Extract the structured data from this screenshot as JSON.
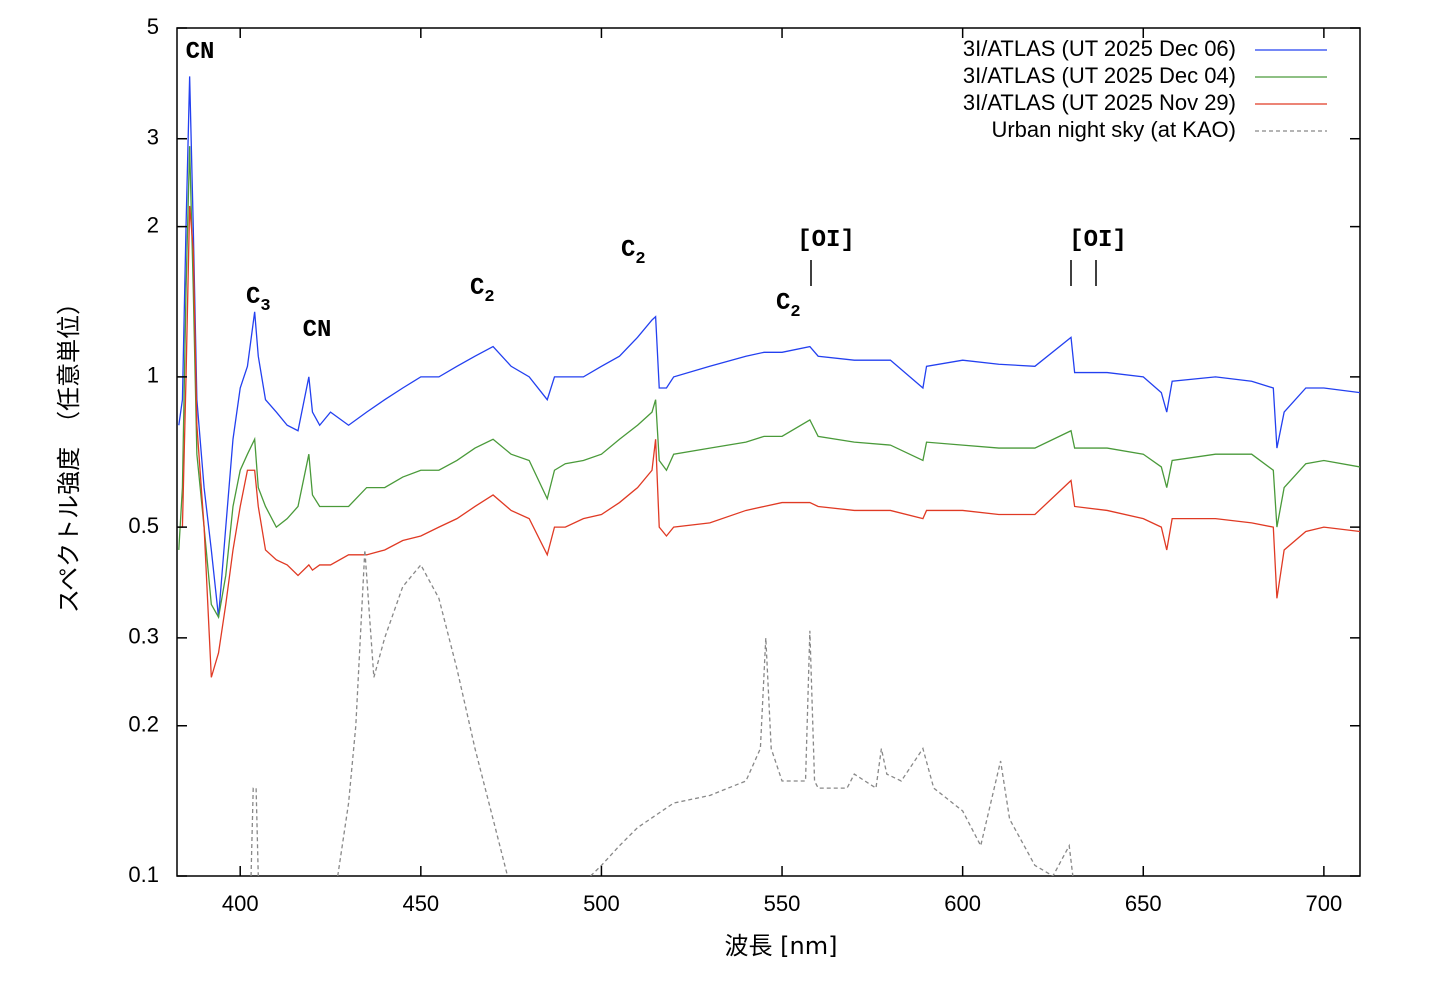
{
  "chart_data": {
    "type": "line",
    "xlabel": "波長 [nm]",
    "ylabel": "スペクトル強度　（任意単位）",
    "log_y": true,
    "legend": "upper right",
    "xlim": [
      382.5,
      710
    ],
    "ylim": [
      0.1,
      5
    ],
    "xticks": [
      400,
      450,
      500,
      550,
      600,
      650,
      700
    ],
    "yticks": [
      0.1,
      0.2,
      0.3,
      0.5,
      1,
      2,
      3,
      5
    ],
    "annotations": [
      {
        "text": "CN"
      },
      {
        "text": "C",
        "sub": "3"
      },
      {
        "text": "CN"
      },
      {
        "text": "C",
        "sub": "2"
      },
      {
        "text": "C",
        "sub": "2"
      },
      {
        "text": "[OI]"
      },
      {
        "text": "C",
        "sub": "2"
      },
      {
        "text": "[OI]"
      }
    ],
    "x": [
      383,
      384,
      385,
      386,
      387,
      388,
      390,
      392,
      394,
      396,
      398,
      400,
      402,
      404,
      405,
      407,
      410,
      413,
      416,
      419,
      420,
      422,
      425,
      430,
      435,
      440,
      445,
      450,
      455,
      460,
      465,
      470,
      475,
      480,
      485,
      487,
      490,
      495,
      500,
      505,
      510,
      514,
      515,
      516,
      518,
      520,
      530,
      540,
      545,
      550,
      557.7,
      560,
      570,
      580,
      589,
      590,
      600,
      610,
      620,
      630,
      631,
      640,
      650,
      655,
      656.5,
      658,
      670,
      680,
      686,
      687,
      689,
      695,
      700,
      710
    ],
    "series": [
      {
        "name": "3I/ATLAS (UT 2025 Dec 06)",
        "color": "#2340f0",
        "style": "solid",
        "values": [
          0.8,
          0.9,
          2.0,
          4.0,
          2.0,
          0.9,
          0.6,
          0.45,
          0.33,
          0.5,
          0.75,
          0.95,
          1.05,
          1.35,
          1.1,
          0.9,
          0.85,
          0.8,
          0.78,
          1.0,
          0.85,
          0.8,
          0.85,
          0.8,
          0.85,
          0.9,
          0.95,
          1.0,
          1.0,
          1.05,
          1.1,
          1.15,
          1.05,
          1.0,
          0.9,
          1.0,
          1.0,
          1.0,
          1.05,
          1.1,
          1.2,
          1.3,
          1.32,
          0.95,
          0.95,
          1.0,
          1.05,
          1.1,
          1.12,
          1.12,
          1.15,
          1.1,
          1.08,
          1.08,
          0.95,
          1.05,
          1.08,
          1.06,
          1.05,
          1.2,
          1.02,
          1.02,
          1.0,
          0.93,
          0.85,
          0.98,
          1.0,
          0.98,
          0.95,
          0.72,
          0.85,
          0.95,
          0.95,
          0.93
        ]
      },
      {
        "name": "3I/ATLAS (UT 2025 Dec 04)",
        "color": "#4a9a3a",
        "style": "solid",
        "values": [
          0.45,
          0.6,
          1.5,
          2.9,
          1.5,
          0.7,
          0.5,
          0.35,
          0.33,
          0.4,
          0.55,
          0.65,
          0.7,
          0.75,
          0.6,
          0.55,
          0.5,
          0.52,
          0.55,
          0.7,
          0.58,
          0.55,
          0.55,
          0.55,
          0.6,
          0.6,
          0.63,
          0.65,
          0.65,
          0.68,
          0.72,
          0.75,
          0.7,
          0.68,
          0.57,
          0.65,
          0.67,
          0.68,
          0.7,
          0.75,
          0.8,
          0.85,
          0.9,
          0.68,
          0.65,
          0.7,
          0.72,
          0.74,
          0.76,
          0.76,
          0.82,
          0.76,
          0.74,
          0.73,
          0.68,
          0.74,
          0.73,
          0.72,
          0.72,
          0.78,
          0.72,
          0.72,
          0.7,
          0.66,
          0.6,
          0.68,
          0.7,
          0.7,
          0.65,
          0.5,
          0.6,
          0.67,
          0.68,
          0.66
        ]
      },
      {
        "name": "3I/ATLAS (UT 2025 Nov 29)",
        "color": "#e03a24",
        "style": "solid",
        "values": [
          0.5,
          0.5,
          1.0,
          2.2,
          1.8,
          0.8,
          0.5,
          0.25,
          0.28,
          0.35,
          0.45,
          0.55,
          0.65,
          0.65,
          0.55,
          0.45,
          0.43,
          0.42,
          0.4,
          0.42,
          0.41,
          0.42,
          0.42,
          0.44,
          0.44,
          0.45,
          0.47,
          0.48,
          0.5,
          0.52,
          0.55,
          0.58,
          0.54,
          0.52,
          0.44,
          0.5,
          0.5,
          0.52,
          0.53,
          0.56,
          0.6,
          0.65,
          0.75,
          0.5,
          0.48,
          0.5,
          0.51,
          0.54,
          0.55,
          0.56,
          0.56,
          0.55,
          0.54,
          0.54,
          0.52,
          0.54,
          0.54,
          0.53,
          0.53,
          0.62,
          0.55,
          0.54,
          0.52,
          0.5,
          0.45,
          0.52,
          0.52,
          0.51,
          0.5,
          0.36,
          0.45,
          0.49,
          0.5,
          0.49
        ]
      },
      {
        "name": "Urban night sky (at KAO)",
        "color": "#888888",
        "style": "dashed",
        "x": [
          403,
          403.6,
          404.4,
          405,
          415,
          427,
          430,
          432,
          434.5,
          437,
          440,
          445,
          450,
          455,
          460,
          465,
          470,
          474,
          485,
          497,
          500,
          505,
          510,
          520,
          530,
          540,
          544,
          545.5,
          547,
          550,
          556.5,
          557.7,
          559,
          560,
          568,
          570,
          576,
          577.5,
          579,
          583,
          589,
          592,
          600,
          605,
          610.5,
          613,
          620,
          625,
          629.5,
          630.5
        ],
        "values": [
          0.1,
          0.15,
          0.15,
          0.1,
          null,
          0.1,
          0.14,
          0.2,
          0.45,
          0.25,
          0.3,
          0.38,
          0.42,
          0.36,
          0.26,
          0.18,
          0.13,
          0.1,
          null,
          0.1,
          0.105,
          0.115,
          0.125,
          0.14,
          0.145,
          0.155,
          0.18,
          0.3,
          0.18,
          0.155,
          0.155,
          0.31,
          0.155,
          0.15,
          0.15,
          0.16,
          0.15,
          0.18,
          0.16,
          0.155,
          0.18,
          0.15,
          0.135,
          0.115,
          0.17,
          0.13,
          0.105,
          0.1,
          0.115,
          0.1
        ]
      }
    ]
  }
}
